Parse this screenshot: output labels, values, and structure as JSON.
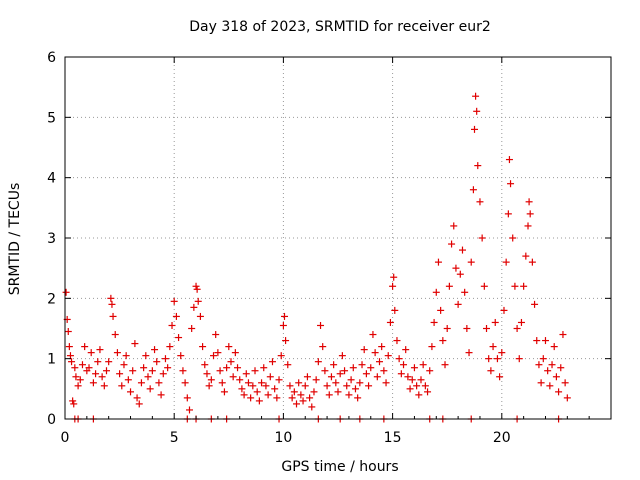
{
  "chart_data": {
    "type": "scatter",
    "title": "Day 318 of 2023, SRMTID for receiver eur2",
    "xlabel": "GPS time / hours",
    "ylabel": "SRMTID / TECUs",
    "xlim": [
      0,
      25
    ],
    "ylim": [
      0,
      6
    ],
    "x_ticks": [
      0,
      5,
      10,
      15,
      20
    ],
    "y_ticks": [
      0,
      1,
      2,
      3,
      4,
      5,
      6
    ],
    "x_tick_labels": [
      "0",
      "5",
      "10",
      "15",
      "20"
    ],
    "y_tick_labels": [
      "0",
      "1",
      "2",
      "3",
      "4",
      "5",
      "6"
    ],
    "grid": true,
    "marker": "+",
    "series_color": "#e00000",
    "series": [
      {
        "name": "SRMTID",
        "points": [
          [
            0.05,
            2.1
          ],
          [
            0.1,
            1.65
          ],
          [
            0.15,
            1.45
          ],
          [
            0.2,
            1.2
          ],
          [
            0.25,
            1.05
          ],
          [
            0.3,
            0.95
          ],
          [
            0.35,
            0.3
          ],
          [
            0.4,
            0.25
          ],
          [
            0.45,
            0.85
          ],
          [
            0.5,
            0.7
          ],
          [
            0.6,
            0.55
          ],
          [
            0.7,
            0.65
          ],
          [
            0.8,
            0.9
          ],
          [
            0.9,
            1.2
          ],
          [
            1.0,
            0.8
          ],
          [
            1.1,
            0.85
          ],
          [
            1.2,
            1.1
          ],
          [
            1.3,
            0.6
          ],
          [
            1.4,
            0.75
          ],
          [
            1.5,
            0.95
          ],
          [
            1.6,
            1.15
          ],
          [
            1.7,
            0.7
          ],
          [
            1.8,
            0.55
          ],
          [
            1.9,
            0.8
          ],
          [
            2.0,
            0.95
          ],
          [
            2.1,
            2.0
          ],
          [
            2.15,
            1.9
          ],
          [
            2.2,
            1.7
          ],
          [
            2.3,
            1.4
          ],
          [
            2.4,
            1.1
          ],
          [
            2.5,
            0.75
          ],
          [
            2.6,
            0.55
          ],
          [
            2.7,
            0.9
          ],
          [
            2.8,
            1.05
          ],
          [
            2.9,
            0.65
          ],
          [
            3.0,
            0.45
          ],
          [
            3.1,
            0.8
          ],
          [
            3.2,
            1.25
          ],
          [
            3.3,
            0.35
          ],
          [
            3.4,
            0.25
          ],
          [
            3.5,
            0.6
          ],
          [
            3.6,
            0.85
          ],
          [
            3.7,
            1.05
          ],
          [
            3.8,
            0.7
          ],
          [
            3.9,
            0.5
          ],
          [
            4.0,
            0.8
          ],
          [
            4.1,
            1.15
          ],
          [
            4.2,
            0.95
          ],
          [
            4.3,
            0.6
          ],
          [
            4.4,
            0.4
          ],
          [
            4.5,
            0.75
          ],
          [
            4.6,
            1.0
          ],
          [
            4.7,
            0.85
          ],
          [
            4.8,
            1.2
          ],
          [
            4.9,
            1.55
          ],
          [
            5.0,
            1.95
          ],
          [
            5.1,
            1.7
          ],
          [
            5.2,
            1.35
          ],
          [
            5.3,
            1.05
          ],
          [
            5.4,
            0.8
          ],
          [
            5.5,
            0.6
          ],
          [
            5.6,
            0.35
          ],
          [
            5.7,
            0.15
          ],
          [
            5.8,
            1.5
          ],
          [
            5.9,
            1.85
          ],
          [
            6.0,
            2.2
          ],
          [
            6.05,
            2.15
          ],
          [
            6.1,
            1.95
          ],
          [
            6.2,
            1.7
          ],
          [
            6.3,
            1.2
          ],
          [
            6.4,
            0.9
          ],
          [
            6.5,
            0.75
          ],
          [
            6.6,
            0.55
          ],
          [
            6.7,
            0.65
          ],
          [
            6.8,
            1.05
          ],
          [
            6.9,
            1.4
          ],
          [
            7.0,
            1.1
          ],
          [
            7.1,
            0.8
          ],
          [
            7.2,
            0.6
          ],
          [
            7.3,
            0.45
          ],
          [
            7.4,
            0.85
          ],
          [
            7.5,
            1.2
          ],
          [
            7.6,
            0.95
          ],
          [
            7.7,
            0.7
          ],
          [
            7.8,
            1.1
          ],
          [
            7.9,
            0.85
          ],
          [
            8.0,
            0.65
          ],
          [
            8.1,
            0.5
          ],
          [
            8.2,
            0.4
          ],
          [
            8.3,
            0.75
          ],
          [
            8.4,
            0.6
          ],
          [
            8.5,
            0.35
          ],
          [
            8.6,
            0.55
          ],
          [
            8.7,
            0.8
          ],
          [
            8.8,
            0.45
          ],
          [
            8.9,
            0.3
          ],
          [
            9.0,
            0.6
          ],
          [
            9.1,
            0.85
          ],
          [
            9.2,
            0.55
          ],
          [
            9.3,
            0.4
          ],
          [
            9.4,
            0.7
          ],
          [
            9.5,
            0.95
          ],
          [
            9.6,
            0.5
          ],
          [
            9.7,
            0.35
          ],
          [
            9.8,
            0.65
          ],
          [
            9.9,
            1.05
          ],
          [
            10.0,
            1.55
          ],
          [
            10.05,
            1.7
          ],
          [
            10.1,
            1.3
          ],
          [
            10.2,
            0.9
          ],
          [
            10.3,
            0.55
          ],
          [
            10.4,
            0.35
          ],
          [
            10.5,
            0.45
          ],
          [
            10.6,
            0.25
          ],
          [
            10.7,
            0.6
          ],
          [
            10.8,
            0.4
          ],
          [
            10.9,
            0.3
          ],
          [
            11.0,
            0.55
          ],
          [
            11.1,
            0.7
          ],
          [
            11.2,
            0.35
          ],
          [
            11.3,
            0.2
          ],
          [
            11.4,
            0.45
          ],
          [
            11.5,
            0.65
          ],
          [
            11.6,
            0.95
          ],
          [
            11.7,
            1.55
          ],
          [
            11.8,
            1.2
          ],
          [
            11.9,
            0.8
          ],
          [
            12.0,
            0.55
          ],
          [
            12.1,
            0.4
          ],
          [
            12.2,
            0.7
          ],
          [
            12.3,
            0.9
          ],
          [
            12.4,
            0.6
          ],
          [
            12.5,
            0.45
          ],
          [
            12.6,
            0.75
          ],
          [
            12.7,
            1.05
          ],
          [
            12.8,
            0.8
          ],
          [
            12.9,
            0.55
          ],
          [
            13.0,
            0.4
          ],
          [
            13.1,
            0.65
          ],
          [
            13.2,
            0.85
          ],
          [
            13.3,
            0.5
          ],
          [
            13.4,
            0.35
          ],
          [
            13.5,
            0.6
          ],
          [
            13.6,
            0.9
          ],
          [
            13.7,
            1.15
          ],
          [
            13.8,
            0.75
          ],
          [
            13.9,
            0.55
          ],
          [
            14.0,
            0.85
          ],
          [
            14.1,
            1.4
          ],
          [
            14.2,
            1.1
          ],
          [
            14.3,
            0.7
          ],
          [
            14.4,
            0.95
          ],
          [
            14.5,
            1.2
          ],
          [
            14.6,
            0.8
          ],
          [
            14.7,
            0.6
          ],
          [
            14.8,
            1.05
          ],
          [
            14.9,
            1.6
          ],
          [
            15.0,
            2.2
          ],
          [
            15.05,
            2.35
          ],
          [
            15.1,
            1.8
          ],
          [
            15.2,
            1.3
          ],
          [
            15.3,
            1.0
          ],
          [
            15.4,
            0.75
          ],
          [
            15.5,
            0.9
          ],
          [
            15.6,
            1.15
          ],
          [
            15.7,
            0.7
          ],
          [
            15.8,
            0.5
          ],
          [
            15.9,
            0.65
          ],
          [
            16.0,
            0.85
          ],
          [
            16.1,
            0.55
          ],
          [
            16.2,
            0.4
          ],
          [
            16.3,
            0.65
          ],
          [
            16.4,
            0.9
          ],
          [
            16.5,
            0.55
          ],
          [
            16.6,
            0.45
          ],
          [
            16.7,
            0.8
          ],
          [
            16.8,
            1.2
          ],
          [
            16.9,
            1.6
          ],
          [
            17.0,
            2.1
          ],
          [
            17.1,
            2.6
          ],
          [
            17.2,
            1.8
          ],
          [
            17.3,
            1.3
          ],
          [
            17.4,
            0.9
          ],
          [
            17.5,
            1.5
          ],
          [
            17.6,
            2.2
          ],
          [
            17.7,
            2.9
          ],
          [
            17.8,
            3.2
          ],
          [
            17.9,
            2.5
          ],
          [
            18.0,
            1.9
          ],
          [
            18.1,
            2.4
          ],
          [
            18.2,
            2.8
          ],
          [
            18.3,
            2.1
          ],
          [
            18.4,
            1.5
          ],
          [
            18.5,
            1.1
          ],
          [
            18.6,
            2.6
          ],
          [
            18.7,
            3.8
          ],
          [
            18.75,
            4.8
          ],
          [
            18.8,
            5.35
          ],
          [
            18.85,
            5.1
          ],
          [
            18.9,
            4.2
          ],
          [
            19.0,
            3.6
          ],
          [
            19.1,
            3.0
          ],
          [
            19.2,
            2.2
          ],
          [
            19.3,
            1.5
          ],
          [
            19.4,
            1.0
          ],
          [
            19.5,
            0.8
          ],
          [
            19.6,
            1.2
          ],
          [
            19.7,
            1.6
          ],
          [
            19.8,
            1.0
          ],
          [
            19.9,
            0.7
          ],
          [
            20.0,
            1.1
          ],
          [
            20.1,
            1.8
          ],
          [
            20.2,
            2.6
          ],
          [
            20.3,
            3.4
          ],
          [
            20.35,
            4.3
          ],
          [
            20.4,
            3.9
          ],
          [
            20.5,
            3.0
          ],
          [
            20.6,
            2.2
          ],
          [
            20.7,
            1.5
          ],
          [
            20.8,
            1.0
          ],
          [
            20.9,
            1.6
          ],
          [
            21.0,
            2.2
          ],
          [
            21.1,
            2.7
          ],
          [
            21.2,
            3.2
          ],
          [
            21.25,
            3.6
          ],
          [
            21.3,
            3.4
          ],
          [
            21.4,
            2.6
          ],
          [
            21.5,
            1.9
          ],
          [
            21.6,
            1.3
          ],
          [
            21.7,
            0.9
          ],
          [
            21.8,
            0.6
          ],
          [
            21.9,
            1.0
          ],
          [
            22.0,
            1.3
          ],
          [
            22.1,
            0.8
          ],
          [
            22.2,
            0.55
          ],
          [
            22.3,
            0.9
          ],
          [
            22.4,
            1.2
          ],
          [
            22.5,
            0.7
          ],
          [
            22.6,
            0.45
          ],
          [
            22.7,
            0.85
          ],
          [
            22.8,
            1.4
          ],
          [
            22.9,
            0.6
          ],
          [
            23.0,
            0.35
          ],
          [
            0.45,
            0.0
          ],
          [
            0.6,
            0.0
          ],
          [
            1.3,
            0.0
          ],
          [
            5.6,
            0.0
          ],
          [
            6.0,
            0.0
          ],
          [
            6.7,
            0.0
          ],
          [
            7.4,
            0.0
          ],
          [
            9.8,
            0.0
          ],
          [
            11.6,
            0.0
          ],
          [
            12.6,
            0.0
          ],
          [
            13.5,
            0.0
          ],
          [
            14.6,
            0.0
          ],
          [
            16.7,
            0.0
          ],
          [
            17.3,
            0.0
          ],
          [
            18.6,
            0.0
          ],
          [
            20.7,
            0.0
          ],
          [
            22.6,
            0.0
          ]
        ]
      }
    ]
  }
}
